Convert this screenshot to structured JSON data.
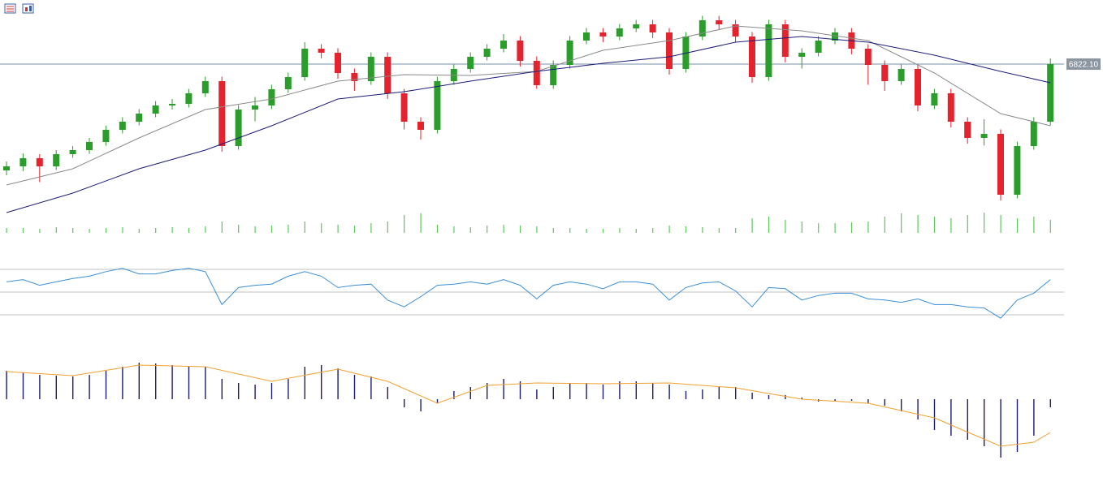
{
  "chart_data": [
    {
      "type": "candlestick",
      "up_color": "#2a9d2a",
      "down_color": "#e3232d",
      "ylim": [
        6078,
        7078
      ],
      "open": [
        6298,
        6318,
        6358,
        6318,
        6378,
        6398,
        6438,
        6498,
        6538,
        6578,
        6618,
        6626,
        6678,
        6738,
        6418,
        6598,
        6618,
        6698,
        6758,
        6898,
        6878,
        6778,
        6738,
        6858,
        6678,
        6538,
        6498,
        6738,
        6798,
        6858,
        6898,
        6938,
        6838,
        6718,
        6818,
        6938,
        6978,
        6958,
        6998,
        7018,
        6978,
        6798,
        6958,
        7038,
        7018,
        6958,
        6758,
        7018,
        6858,
        6878,
        6938,
        6978,
        6898,
        6818,
        6738,
        6798,
        6618,
        6678,
        6538,
        6458,
        6478,
        6178,
        6418,
        6538
      ],
      "high": [
        6342,
        6382,
        6378,
        6398,
        6418,
        6458,
        6518,
        6560,
        6600,
        6640,
        6650,
        6700,
        6760,
        6760,
        6620,
        6660,
        6720,
        6780,
        6930,
        6920,
        6900,
        6800,
        6880,
        6880,
        6700,
        6560,
        6760,
        6820,
        6880,
        6920,
        6970,
        6960,
        6860,
        6840,
        6960,
        7000,
        7000,
        7020,
        7040,
        7040,
        7000,
        6980,
        7060,
        7060,
        7040,
        6980,
        7040,
        7040,
        6900,
        6960,
        7000,
        7000,
        6920,
        6840,
        6820,
        6820,
        6700,
        6700,
        6560,
        6550,
        6500,
        6440,
        6560,
        6850
      ],
      "low": [
        6274,
        6294,
        6240,
        6300,
        6360,
        6380,
        6420,
        6480,
        6520,
        6560,
        6598,
        6608,
        6660,
        6390,
        6400,
        6540,
        6600,
        6680,
        6740,
        6850,
        6750,
        6690,
        6720,
        6650,
        6500,
        6450,
        6480,
        6720,
        6780,
        6840,
        6880,
        6810,
        6700,
        6700,
        6800,
        6920,
        6930,
        6940,
        6980,
        6950,
        6770,
        6780,
        6940,
        6990,
        6930,
        6730,
        6740,
        6830,
        6800,
        6860,
        6920,
        6870,
        6720,
        6690,
        6720,
        6590,
        6600,
        6510,
        6430,
        6420,
        6150,
        6160,
        6400,
        6520
      ],
      "close": [
        6318,
        6358,
        6318,
        6378,
        6398,
        6438,
        6498,
        6538,
        6578,
        6618,
        6626,
        6678,
        6738,
        6418,
        6598,
        6618,
        6698,
        6758,
        6898,
        6878,
        6778,
        6738,
        6858,
        6678,
        6538,
        6498,
        6738,
        6798,
        6858,
        6898,
        6938,
        6838,
        6718,
        6818,
        6938,
        6978,
        6958,
        6998,
        7018,
        6978,
        6798,
        6958,
        7038,
        7018,
        6958,
        6758,
        7018,
        6858,
        6878,
        6938,
        6978,
        6898,
        6818,
        6738,
        6798,
        6618,
        6678,
        6538,
        6458,
        6478,
        6178,
        6418,
        6538,
        6822.1
      ],
      "price_line": {
        "value": 6822.1,
        "label": "6822.10"
      },
      "series": [
        {
          "color": "#8a8a8a",
          "x": [
            0,
            4,
            8,
            12,
            16,
            20,
            24,
            28,
            32,
            36,
            40,
            44,
            48,
            52,
            56,
            60,
            63
          ],
          "values": [
            6226,
            6306,
            6458,
            6598,
            6650,
            6738,
            6770,
            6766,
            6786,
            6890,
            6938,
            7010,
            6986,
            6938,
            6778,
            6578,
            6518
          ]
        },
        {
          "color": "#1c1c78",
          "x": [
            0,
            4,
            8,
            12,
            16,
            20,
            24,
            28,
            32,
            36,
            40,
            44,
            48,
            52,
            56,
            60,
            63
          ],
          "values": [
            6090,
            6186,
            6306,
            6398,
            6518,
            6650,
            6686,
            6738,
            6786,
            6826,
            6858,
            6930,
            6958,
            6930,
            6866,
            6786,
            6730
          ]
        }
      ]
    },
    {
      "type": "bar",
      "color": "#5cc65c",
      "ylim": [
        0,
        30
      ],
      "values": [
        6,
        6,
        5,
        7,
        6,
        5,
        6,
        7,
        5,
        6,
        7,
        6,
        8,
        14,
        10,
        8,
        9,
        10,
        14,
        12,
        10,
        9,
        12,
        14,
        22,
        24,
        10,
        8,
        7,
        9,
        10,
        9,
        8,
        6,
        6,
        5,
        5,
        6,
        5,
        6,
        9,
        8,
        7,
        6,
        6,
        18,
        20,
        16,
        14,
        12,
        12,
        13,
        14,
        20,
        24,
        22,
        20,
        18,
        22,
        25,
        22,
        18,
        20,
        16
      ]
    },
    {
      "type": "line",
      "color": "#3a8fd6",
      "ylim": [
        20,
        80
      ],
      "levels": [
        30,
        50,
        70
      ],
      "values": [
        59,
        61,
        56,
        59,
        62,
        64,
        68,
        71,
        66,
        66,
        69,
        71,
        68,
        39,
        54,
        56,
        57,
        64,
        68,
        64,
        54,
        56,
        57,
        43,
        37,
        46,
        56,
        57,
        59,
        57,
        61,
        56,
        44,
        56,
        59,
        57,
        53,
        59,
        59,
        57,
        43,
        54,
        58,
        59,
        51,
        37,
        54,
        53,
        43,
        47,
        49,
        49,
        44,
        43,
        41,
        44,
        39,
        39,
        37,
        36,
        27,
        43,
        49,
        61
      ]
    },
    {
      "type": "macd",
      "color": "#1c1c6e",
      "ylim": [
        -80,
        60
      ],
      "values": [
        35,
        33,
        30,
        29,
        28,
        30,
        35,
        40,
        45,
        44,
        42,
        41,
        40,
        25,
        20,
        18,
        20,
        25,
        40,
        42,
        38,
        30,
        28,
        15,
        -10,
        -15,
        -5,
        10,
        15,
        20,
        25,
        22,
        12,
        15,
        20,
        20,
        18,
        22,
        22,
        20,
        18,
        10,
        12,
        15,
        15,
        8,
        5,
        5,
        2,
        -3,
        -3,
        -2,
        -5,
        -8,
        -15,
        -25,
        -38,
        -45,
        -50,
        -58,
        -72,
        -65,
        -45,
        -10
      ],
      "series": [
        {
          "color": "#f0a030",
          "x": [
            0,
            4,
            8,
            12,
            16,
            20,
            23,
            26,
            29,
            32,
            36,
            40,
            44,
            48,
            52,
            56,
            60,
            62,
            63
          ],
          "values": [
            34,
            29,
            42,
            40,
            22,
            37,
            22,
            -5,
            17,
            20,
            19,
            20,
            14,
            0,
            -5,
            -23,
            -58,
            -53,
            -41
          ]
        }
      ]
    }
  ]
}
